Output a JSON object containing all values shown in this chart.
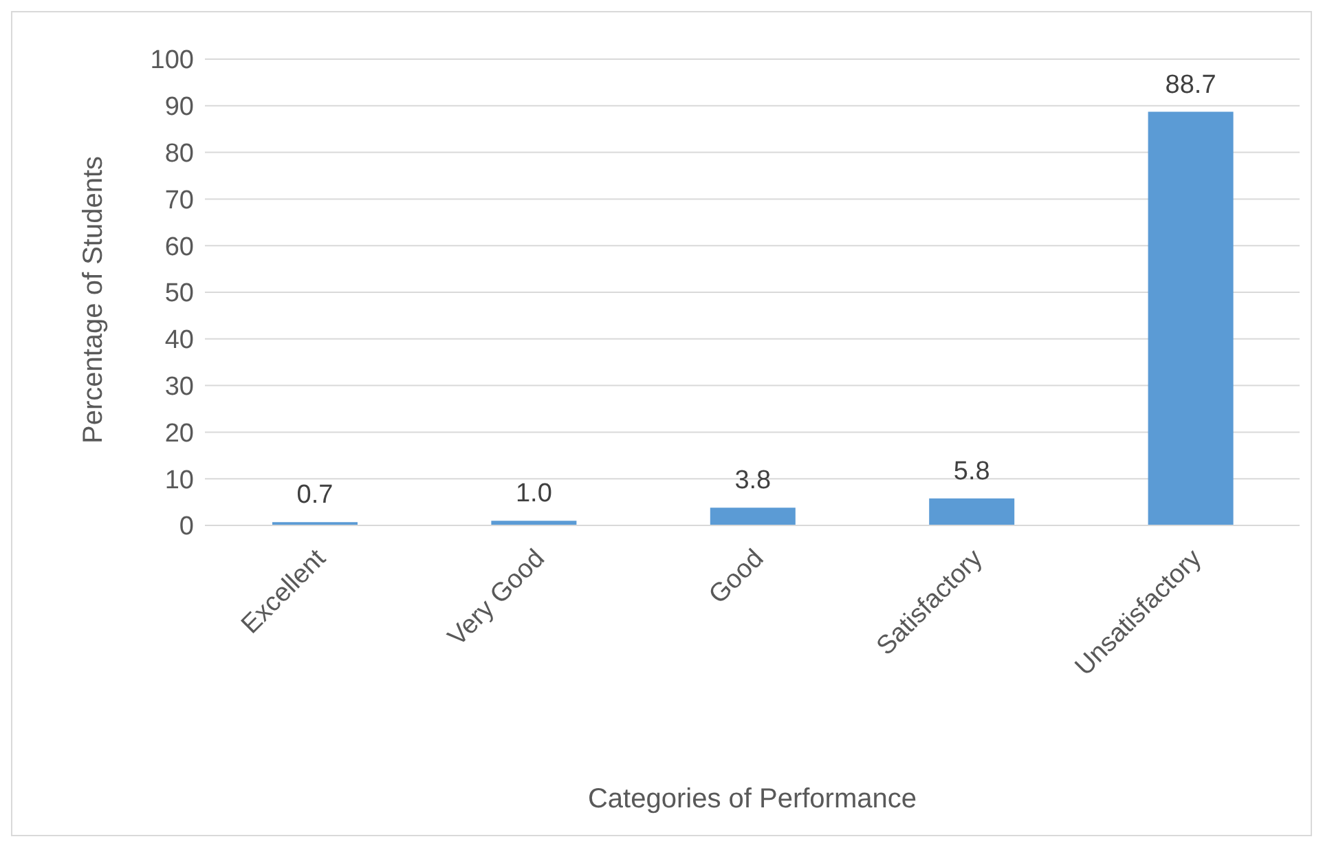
{
  "chart_data": {
    "type": "bar",
    "xlabel": "Categories of Performance",
    "ylabel": "Percentage of Students",
    "categories": [
      "Excellent",
      "Very Good",
      "Good",
      "Satisfactory",
      "Unsatisfactory"
    ],
    "values": [
      0.7,
      1.0,
      3.8,
      5.8,
      88.7
    ],
    "value_labels": [
      "0.7",
      "1.0",
      "3.8",
      "5.8",
      "88.7"
    ],
    "color": "#5b9bd5",
    "ylim": [
      0,
      100
    ],
    "yticks": [
      0,
      10,
      20,
      30,
      40,
      50,
      60,
      70,
      80,
      90,
      100
    ],
    "grid": "y",
    "legend": false
  }
}
